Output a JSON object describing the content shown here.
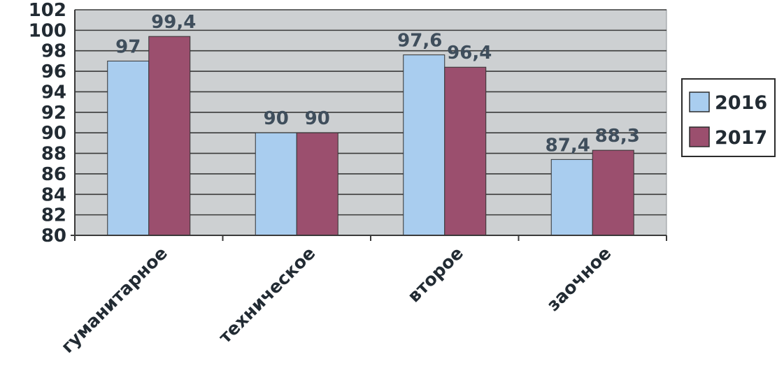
{
  "chart_data": {
    "type": "bar",
    "categories": [
      "гуманитарное",
      "техническое",
      "второе",
      "заочное"
    ],
    "series": [
      {
        "name": "2016",
        "color": "#a9cdef",
        "values": [
          97,
          90,
          97.6,
          87.4
        ],
        "labels": [
          "97",
          "90",
          "97,6",
          "87,4"
        ]
      },
      {
        "name": "2017",
        "color": "#9b4f6e",
        "values": [
          99.4,
          90,
          96.4,
          88.3
        ],
        "labels": [
          "99,4",
          "90",
          "96,4",
          "88,3"
        ]
      }
    ],
    "ylim": [
      80,
      102
    ],
    "yticks": [
      "80",
      "82",
      "84",
      "86",
      "88",
      "90",
      "92",
      "94",
      "96",
      "98",
      "100",
      "102"
    ],
    "title": "",
    "xlabel": "",
    "ylabel": "",
    "grid": true,
    "legend_position": "right",
    "plot_background": "#cdd0d2"
  }
}
